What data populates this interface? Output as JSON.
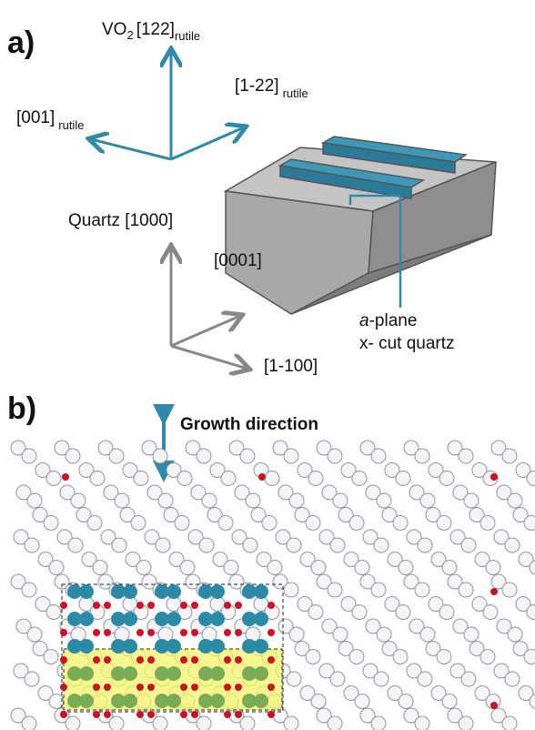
{
  "panel_a": {
    "label": "a)",
    "vo2_axes": {
      "up_prefix": "VO",
      "up_subscript": "2",
      "up_index": "[122]",
      "up_suffix": "rutile",
      "right_index": "[1-22]",
      "right_suffix": "rutile",
      "left_index": "[001]",
      "left_suffix": "rutile"
    },
    "quartz_axes": {
      "up": "Quartz [1000]",
      "diagonal": "[0001]",
      "right": "[1-100]"
    },
    "substrate": {
      "plane_letter": "a",
      "plane_suffix": "-plane",
      "cut": "x- cut quartz"
    }
  },
  "panel_b": {
    "label": "b)",
    "arrow_label": "Growth direction"
  }
}
